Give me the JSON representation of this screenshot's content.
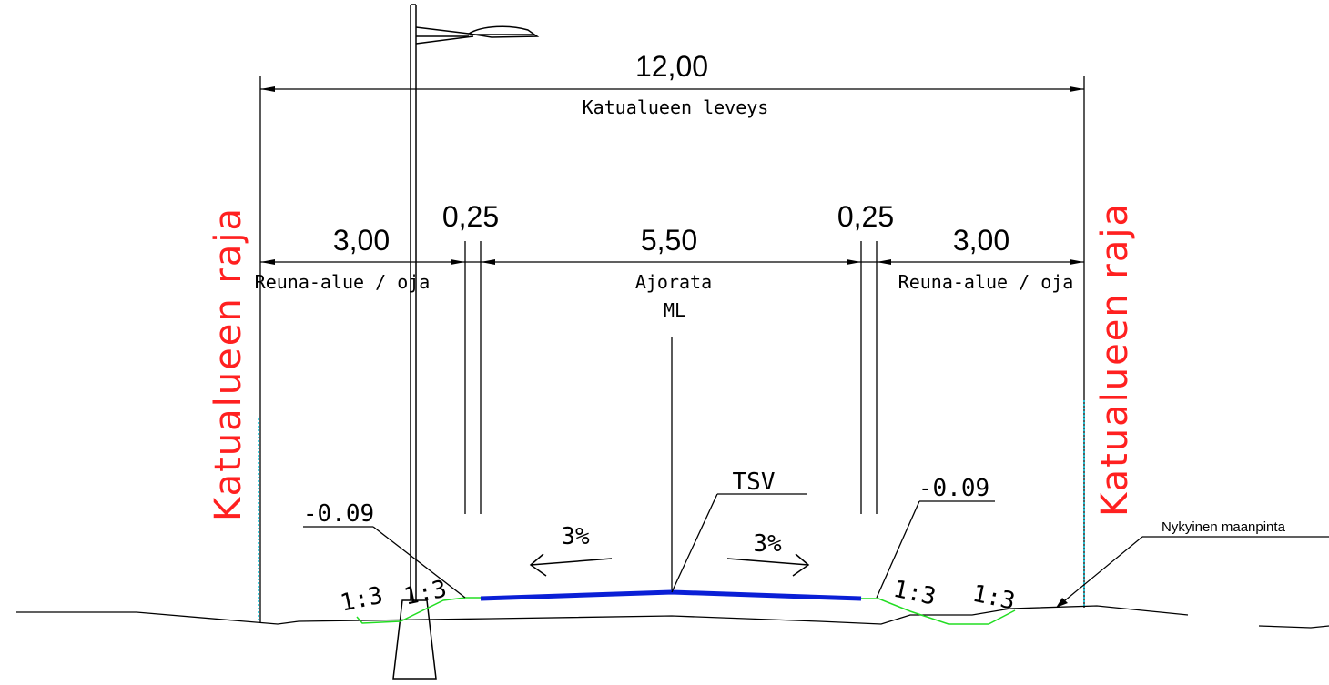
{
  "dimensions": {
    "total_width": "12,00",
    "total_label": "Katualueen leveys",
    "left_edge_width": "3,00",
    "left_edge_label": "Reuna-alue / oja",
    "left_curb_width": "0,25",
    "carriageway_width": "5,50",
    "carriageway_label": "Ajorata",
    "centerline_label": "ML",
    "right_curb_width": "0,25",
    "right_edge_width": "3,00",
    "right_edge_label": "Reuna-alue / oja"
  },
  "labels": {
    "left_border": "Katualueen raja",
    "right_border": "Katualueen raja",
    "tsv": "TSV",
    "left_slope": "3%",
    "right_slope": "3%",
    "left_level": "-0.09",
    "right_level": "-0.09",
    "existing_ground": "Nykyinen maanpinta",
    "slope_ratio_1": "1:3",
    "slope_ratio_2": "1:3",
    "slope_ratio_3": "1:3",
    "slope_ratio_4": "1:3"
  },
  "colors": {
    "line": "#000000",
    "border_text": "#ff2020",
    "border_line": "#00c8e0",
    "pavement": "#0a1fd6",
    "ditch": "#22dd22"
  }
}
